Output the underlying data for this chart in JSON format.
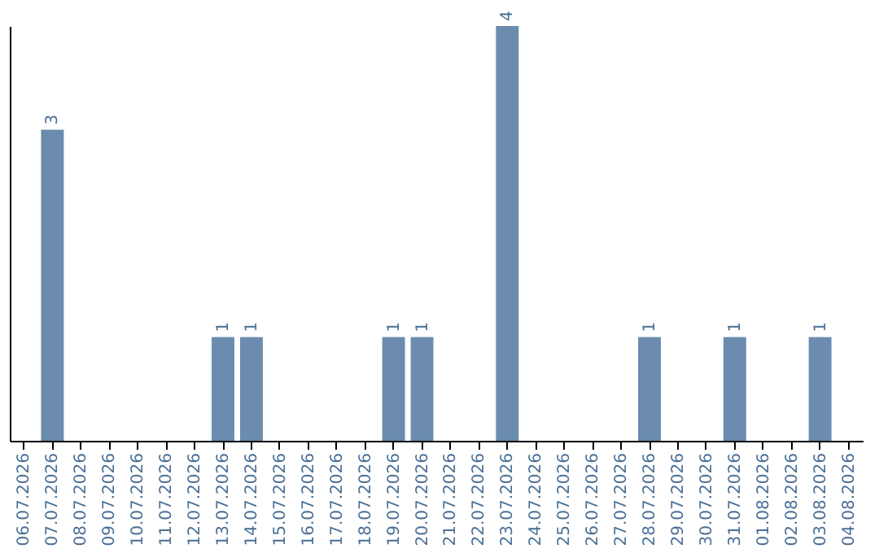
{
  "chart_data": {
    "type": "bar",
    "categories": [
      "06.07.2026",
      "07.07.2026",
      "08.07.2026",
      "09.07.2026",
      "10.07.2026",
      "11.07.2026",
      "12.07.2026",
      "13.07.2026",
      "14.07.2026",
      "15.07.2026",
      "16.07.2026",
      "17.07.2026",
      "18.07.2026",
      "19.07.2026",
      "20.07.2026",
      "21.07.2026",
      "22.07.2026",
      "23.07.2026",
      "24.07.2026",
      "25.07.2026",
      "26.07.2026",
      "27.07.2026",
      "28.07.2026",
      "29.07.2026",
      "30.07.2026",
      "31.07.2026",
      "01.08.2026",
      "02.08.2026",
      "03.08.2026",
      "04.08.2026"
    ],
    "values": [
      0,
      3,
      0,
      0,
      0,
      0,
      0,
      1,
      1,
      0,
      0,
      0,
      0,
      1,
      1,
      0,
      0,
      4,
      0,
      0,
      0,
      0,
      1,
      0,
      0,
      1,
      0,
      0,
      1,
      0
    ],
    "value_labels": [
      null,
      "3",
      null,
      null,
      null,
      null,
      null,
      "1",
      "1",
      null,
      null,
      null,
      null,
      "1",
      "1",
      null,
      null,
      "4",
      null,
      null,
      null,
      null,
      "1",
      null,
      null,
      "1",
      null,
      null,
      "1",
      null
    ],
    "color": "#6b8cae",
    "grid": false
  }
}
